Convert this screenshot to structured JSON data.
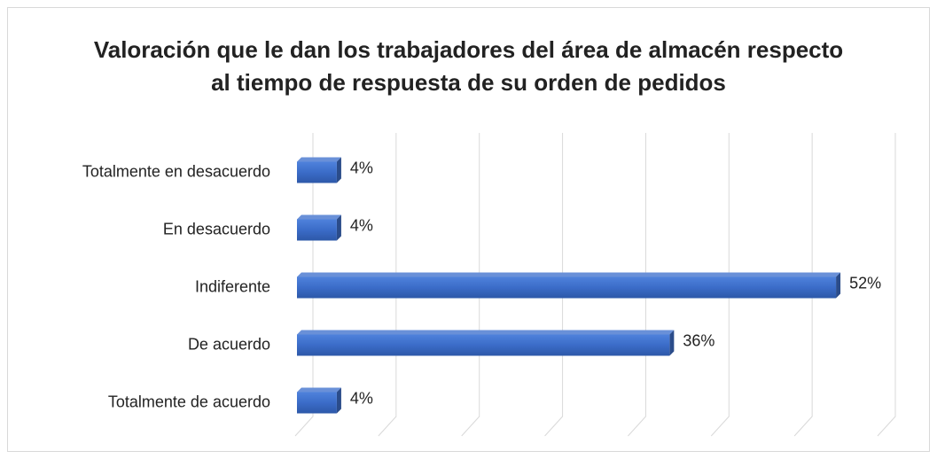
{
  "chart_data": {
    "type": "bar",
    "orientation": "horizontal",
    "three_d": true,
    "title": "Valoración que le dan los trabajadores del área de almacén respecto al tiempo de respuesta de su orden de pedidos",
    "categories": [
      "Totalmente en desacuerdo",
      "En desacuerdo",
      "Indiferente",
      "De acuerdo",
      "Totalmente de acuerdo"
    ],
    "values": [
      4,
      4,
      52,
      36,
      4
    ],
    "value_labels": [
      "4%",
      "4%",
      "52%",
      "36%",
      "4%"
    ],
    "color": "#3b6cc8",
    "xlim": [
      0,
      56
    ],
    "xticks": [
      0,
      8,
      16,
      24,
      32,
      40,
      48,
      56
    ],
    "grid": true
  }
}
